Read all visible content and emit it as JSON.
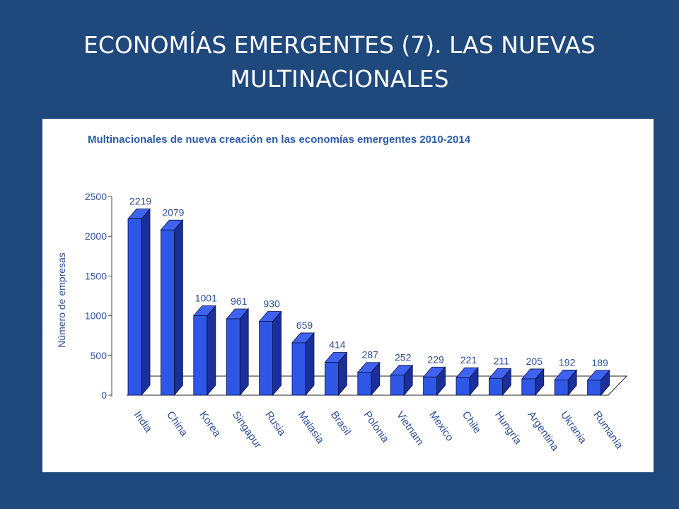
{
  "slide": {
    "title_line1": "ECONOMÍAS EMERGENTES (7). LAS NUEVAS",
    "title_line2": "MULTINACIONALES"
  },
  "colors": {
    "background": "#1f497d",
    "bar_front": "#2f57e6",
    "bar_top": "#3f63f0",
    "bar_side": "#1b2f9a",
    "text": "#2d4f9b"
  },
  "chart_data": {
    "type": "bar",
    "title": "Multinacionales de nueva creación en las economías emergentes 2010-2014",
    "xlabel": "",
    "ylabel": "Número de empresas",
    "ylim": [
      0,
      2500
    ],
    "yticks": [
      0,
      500,
      1000,
      1500,
      2000,
      2500
    ],
    "grid": false,
    "style": "3d-columns",
    "categories": [
      "India",
      "China",
      "Korea",
      "Singapur",
      "Rusia",
      "Malasia",
      "Brasil",
      "Polonia",
      "Vietnam",
      "Mexico",
      "Chile",
      "Hungría",
      "Argentina",
      "Ukrania",
      "Rumanía"
    ],
    "values": [
      2219,
      2079,
      1001,
      961,
      930,
      659,
      414,
      287,
      252,
      229,
      221,
      211,
      205,
      192,
      189
    ]
  }
}
